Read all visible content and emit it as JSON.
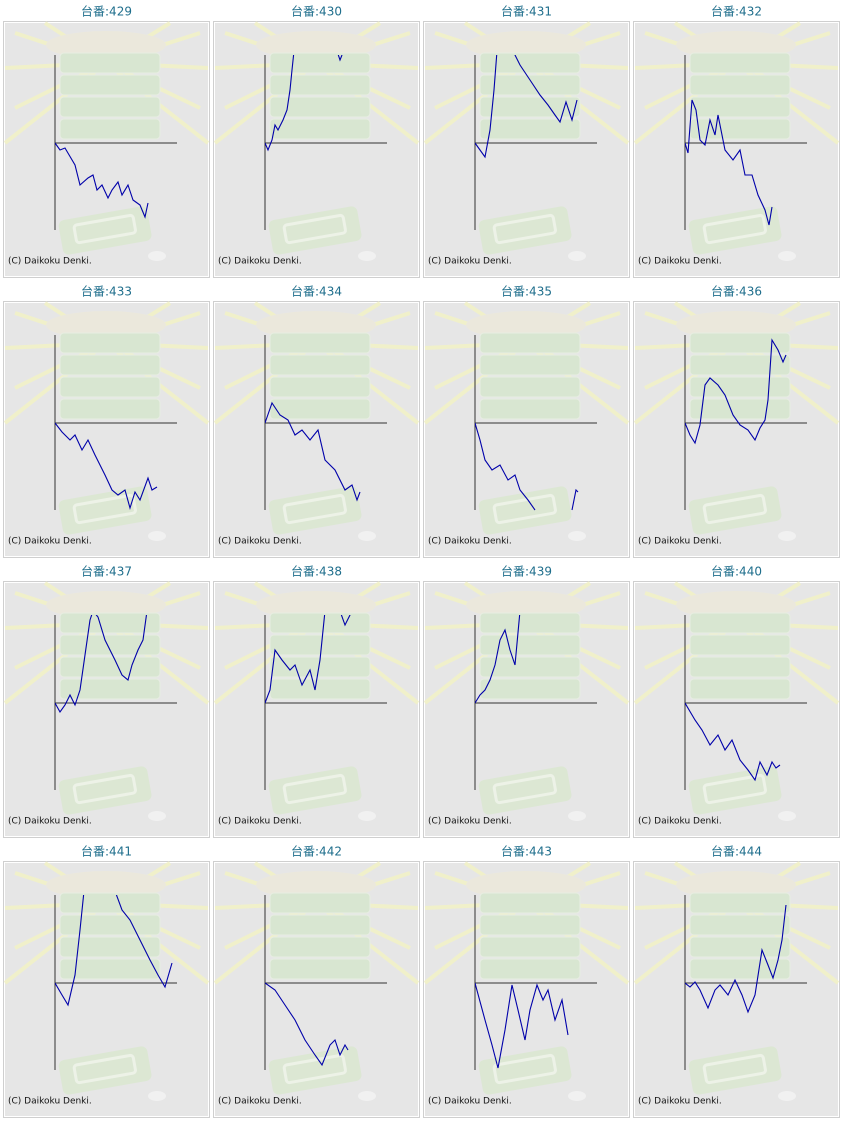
{
  "chart_data": [
    {
      "type": "line",
      "title": "台番:429",
      "annotation": "(C) Daikoku Denki.",
      "color": "#0000aa",
      "xlim": [
        0,
        122
      ],
      "ylim": [
        -88,
        88
      ],
      "x": [
        0,
        5,
        10,
        20,
        25,
        33,
        38,
        42,
        47,
        53,
        57,
        63,
        67,
        73,
        78,
        85,
        90,
        93
      ],
      "values": [
        0,
        -7,
        -5,
        -22,
        -42,
        -35,
        -32,
        -47,
        -42,
        -55,
        -47,
        -39,
        -52,
        -42,
        -57,
        -62,
        -74,
        -60
      ]
    },
    {
      "type": "line",
      "title": "台番:430",
      "annotation": "(C) Daikoku Denki.",
      "color": "#0000aa",
      "xlim": [
        0,
        122
      ],
      "ylim": [
        -88,
        88
      ],
      "x": [
        0,
        3,
        7,
        10,
        13,
        18,
        22,
        25,
        27,
        29,
        30,
        72,
        75,
        77
      ],
      "values": [
        0,
        -7,
        3,
        18,
        13,
        23,
        33,
        53,
        73,
        92,
        null,
        92,
        83,
        88
      ]
    },
    {
      "type": "line",
      "title": "台番:431",
      "annotation": "(C) Daikoku Denki.",
      "color": "#0000aa",
      "xlim": [
        0,
        122
      ],
      "ylim": [
        -88,
        88
      ],
      "x": [
        0,
        5,
        10,
        15,
        19,
        22,
        30,
        38,
        45,
        55,
        65,
        73,
        80,
        85,
        91,
        97,
        102
      ],
      "values": [
        0,
        -7,
        -14,
        13,
        53,
        92,
        null,
        92,
        78,
        63,
        48,
        38,
        28,
        21,
        41,
        23,
        43
      ]
    },
    {
      "type": "line",
      "title": "台番:432",
      "annotation": "(C) Daikoku Denki.",
      "color": "#0000aa",
      "xlim": [
        0,
        122
      ],
      "ylim": [
        -88,
        88
      ],
      "x": [
        0,
        3,
        7,
        11,
        15,
        20,
        25,
        30,
        33,
        40,
        48,
        55,
        60,
        67,
        73,
        80,
        84,
        87
      ],
      "values": [
        0,
        -10,
        43,
        33,
        3,
        -2,
        23,
        8,
        28,
        -7,
        -17,
        -7,
        -32,
        -32,
        -52,
        -67,
        -82,
        -64
      ]
    },
    {
      "type": "line",
      "title": "台番:433",
      "annotation": "(C) Daikoku Denki.",
      "color": "#0000aa",
      "xlim": [
        0,
        122
      ],
      "ylim": [
        -88,
        88
      ],
      "x": [
        0,
        7,
        15,
        20,
        27,
        33,
        40,
        50,
        57,
        63,
        70,
        75,
        80,
        85,
        93,
        97,
        102
      ],
      "values": [
        0,
        -9,
        -17,
        -12,
        -27,
        -17,
        -32,
        -52,
        -67,
        -72,
        -67,
        -85,
        -69,
        -77,
        -55,
        -67,
        -64
      ]
    },
    {
      "type": "line",
      "title": "台番:434",
      "annotation": "(C) Daikoku Denki.",
      "color": "#0000aa",
      "xlim": [
        0,
        122
      ],
      "ylim": [
        -88,
        88
      ],
      "x": [
        0,
        7,
        15,
        23,
        30,
        37,
        45,
        53,
        60,
        70,
        80,
        87,
        92,
        95
      ],
      "values": [
        0,
        20,
        8,
        3,
        -12,
        -7,
        -17,
        -7,
        -37,
        -47,
        -67,
        -62,
        -77,
        -69
      ]
    },
    {
      "type": "line",
      "title": "台番:435",
      "annotation": "(C) Daikoku Denki.",
      "color": "#0000aa",
      "xlim": [
        0,
        122
      ],
      "ylim": [
        -88,
        88
      ],
      "x": [
        0,
        5,
        10,
        17,
        25,
        33,
        40,
        45,
        53,
        60,
        75,
        97,
        101,
        103
      ],
      "values": [
        0,
        -17,
        -37,
        -47,
        -42,
        -57,
        -52,
        -67,
        -77,
        -87,
        null,
        -87,
        -67,
        -69
      ]
    },
    {
      "type": "line",
      "title": "台番:436",
      "annotation": "(C) Daikoku Denki.",
      "color": "#0000aa",
      "xlim": [
        0,
        122
      ],
      "ylim": [
        -88,
        88
      ],
      "x": [
        0,
        5,
        10,
        15,
        20,
        25,
        33,
        40,
        48,
        55,
        63,
        70,
        75,
        80,
        83,
        87,
        93,
        98,
        101
      ],
      "values": [
        0,
        -12,
        -20,
        -2,
        38,
        45,
        38,
        28,
        8,
        -2,
        -7,
        -17,
        -5,
        3,
        23,
        83,
        73,
        61,
        68
      ]
    },
    {
      "type": "line",
      "title": "台番:437",
      "annotation": "(C) Daikoku Denki.",
      "color": "#0000aa",
      "xlim": [
        0,
        122
      ],
      "ylim": [
        -88,
        88
      ],
      "x": [
        0,
        5,
        10,
        15,
        20,
        25,
        30,
        35,
        38,
        43,
        50,
        60,
        67,
        73,
        77,
        83,
        88,
        92
      ],
      "values": [
        0,
        -9,
        -2,
        8,
        -2,
        13,
        48,
        83,
        92,
        86,
        63,
        43,
        28,
        23,
        38,
        53,
        63,
        92
      ]
    },
    {
      "type": "line",
      "title": "台番:438",
      "annotation": "(C) Daikoku Denki.",
      "color": "#0000aa",
      "xlim": [
        0,
        122
      ],
      "ylim": [
        -88,
        88
      ],
      "x": [
        0,
        5,
        10,
        17,
        25,
        30,
        37,
        45,
        50,
        55,
        60,
        67,
        75,
        80,
        87
      ],
      "values": [
        0,
        13,
        53,
        43,
        33,
        38,
        18,
        33,
        13,
        43,
        92,
        null,
        92,
        78,
        92
      ]
    },
    {
      "type": "line",
      "title": "台番:439",
      "annotation": "(C) Daikoku Denki.",
      "color": "#0000aa",
      "xlim": [
        0,
        122
      ],
      "ylim": [
        -88,
        88
      ],
      "x": [
        0,
        5,
        10,
        15,
        20,
        25,
        30,
        35,
        40,
        45
      ],
      "values": [
        0,
        8,
        13,
        23,
        38,
        63,
        73,
        53,
        38,
        92
      ]
    },
    {
      "type": "line",
      "title": "台番:440",
      "annotation": "(C) Daikoku Denki.",
      "color": "#0000aa",
      "xlim": [
        0,
        122
      ],
      "ylim": [
        -88,
        88
      ],
      "x": [
        0,
        10,
        17,
        25,
        33,
        40,
        47,
        55,
        63,
        70,
        75,
        82,
        87,
        91,
        95
      ],
      "values": [
        0,
        -17,
        -27,
        -42,
        -32,
        -47,
        -37,
        -57,
        -67,
        -77,
        -59,
        -72,
        -59,
        -65,
        -62
      ]
    },
    {
      "type": "line",
      "title": "台番:441",
      "annotation": "(C) Daikoku Denki.",
      "color": "#0000aa",
      "xlim": [
        0,
        122
      ],
      "ylim": [
        -88,
        88
      ],
      "x": [
        0,
        7,
        13,
        20,
        25,
        29,
        45,
        60,
        67,
        75,
        85,
        95,
        103,
        110,
        117
      ],
      "values": [
        0,
        -12,
        -22,
        8,
        53,
        92,
        null,
        92,
        73,
        63,
        43,
        23,
        8,
        -4,
        20
      ]
    },
    {
      "type": "line",
      "title": "台番:442",
      "annotation": "(C) Daikoku Denki.",
      "color": "#0000aa",
      "xlim": [
        0,
        122
      ],
      "ylim": [
        -88,
        88
      ],
      "x": [
        0,
        10,
        20,
        30,
        40,
        50,
        57,
        65,
        70,
        75,
        80,
        83
      ],
      "values": [
        0,
        -7,
        -22,
        -37,
        -57,
        -72,
        -82,
        -62,
        -57,
        -72,
        -62,
        -67
      ]
    },
    {
      "type": "line",
      "title": "台番:443",
      "annotation": "(C) Daikoku Denki.",
      "color": "#0000aa",
      "xlim": [
        0,
        122
      ],
      "ylim": [
        -88,
        88
      ],
      "x": [
        0,
        10,
        17,
        23,
        30,
        37,
        43,
        50,
        55,
        62,
        68,
        73,
        80,
        87,
        93
      ],
      "values": [
        0,
        -37,
        -62,
        -85,
        -47,
        -2,
        -27,
        -57,
        -27,
        -2,
        -17,
        -7,
        -37,
        -17,
        -52
      ]
    },
    {
      "type": "line",
      "title": "台番:444",
      "annotation": "(C) Daikoku Denki.",
      "color": "#0000aa",
      "xlim": [
        0,
        122
      ],
      "ylim": [
        -88,
        88
      ],
      "x": [
        0,
        5,
        10,
        15,
        23,
        30,
        35,
        43,
        50,
        57,
        63,
        70,
        77,
        83,
        88,
        93,
        97,
        101
      ],
      "values": [
        0,
        -4,
        1,
        -7,
        -25,
        -7,
        -2,
        -12,
        3,
        -12,
        -29,
        -12,
        33,
        18,
        5,
        23,
        43,
        78
      ]
    }
  ]
}
